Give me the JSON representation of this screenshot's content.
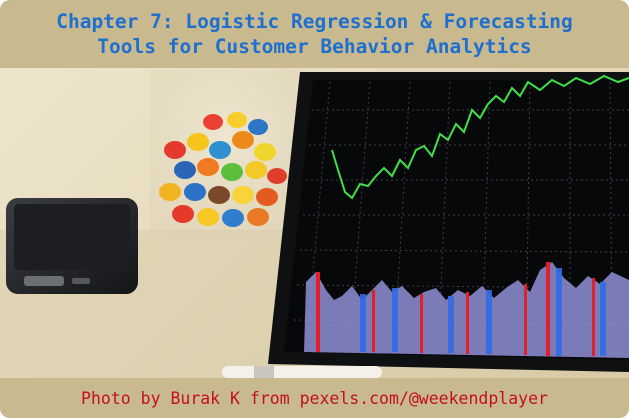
{
  "title": {
    "line1": "Chapter 7: Logistic Regression & Forecasting",
    "line2": "Tools for Customer Behavior Analytics"
  },
  "caption": "Photo by Burak K from pexels.com/@weekendplayer",
  "photo": {
    "subjects": [
      "smartphone-icon",
      "candy-jar-icon",
      "tablet-icon",
      "stock-chart-icon",
      "stylus-icon"
    ]
  }
}
